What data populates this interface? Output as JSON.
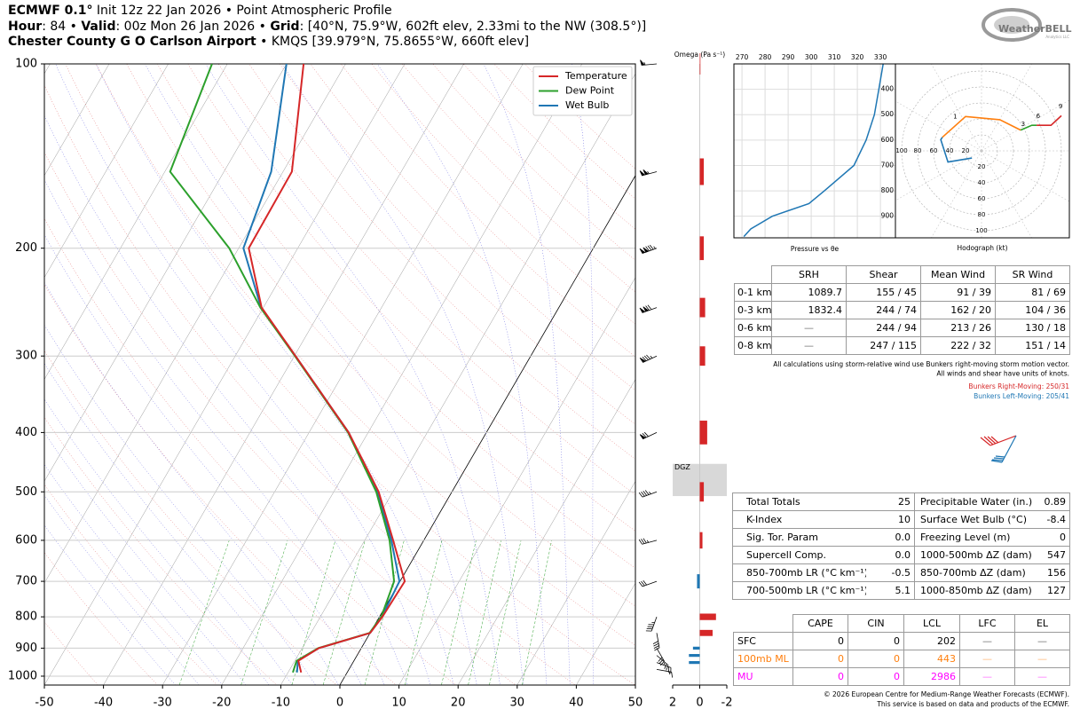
{
  "header": {
    "lines": [
      [
        "ECMWF 0.1°",
        " Init 12z 22 Jan 2026 • Point Atmospheric Profile"
      ],
      [
        "Hour",
        ": 84 • ",
        "Valid",
        ": 00z Mon 26 Jan 2026 • ",
        "Grid",
        ": [40°N, 75.9°W, 602ft elev, 2.33mi to the NW (308.5°)]"
      ],
      [
        "Chester County G O Carlson Airport",
        " • KMQS [39.979°N, 75.8655°W, 660ft elev]"
      ]
    ]
  },
  "logo": {
    "name": "WeatherBELL",
    "sub": "Analytics LLC"
  },
  "chart_data": [
    {
      "type": "skewt",
      "pressure": [
        986,
        944,
        900,
        850,
        800,
        700,
        600,
        500,
        400,
        300,
        250,
        200,
        150,
        100
      ],
      "series": [
        {
          "name": "Temperature",
          "color": "#d62728",
          "values": [
            -7.8,
            -9.4,
            -7.2,
            0.0,
            0.5,
            0.8,
            -5.2,
            -12.4,
            -23.3,
            -39.8,
            -50.3,
            -58.3,
            -58.5,
            -67.1
          ]
        },
        {
          "name": "Dew Point",
          "color": "#2ca02c",
          "values": [
            -9.2,
            -9.7,
            -7.3,
            -0.1,
            0.3,
            -1.0,
            -5.8,
            -12.8,
            -23.4,
            -39.9,
            -50.5,
            -61.6,
            -79.1,
            -82.6
          ]
        },
        {
          "name": "Wet Bulb",
          "color": "#1f77b4",
          "values": [
            -8.5,
            -9.5,
            -7.2,
            0.0,
            0.4,
            -0.1,
            -5.5,
            -12.6,
            -23.3,
            -39.8,
            -50.4,
            -59.2,
            -62.0,
            -70.0
          ]
        }
      ],
      "xlim": [
        -50,
        50
      ],
      "xticks": [
        -50,
        -40,
        -30,
        -20,
        -10,
        0,
        10,
        20,
        30,
        40,
        50
      ],
      "ylim": [
        1034,
        100
      ],
      "yticks": [
        100,
        200,
        300,
        400,
        500,
        600,
        700,
        800,
        900,
        1000
      ],
      "log_y": true,
      "grid": true,
      "legend": "upper right",
      "wind_barbs": {
        "pressure": [
          100,
          150,
          200,
          250,
          300,
          400,
          500,
          600,
          700,
          800,
          850,
          900,
          925,
          950,
          975
        ],
        "speed": [
          55,
          105,
          135,
          120,
          85,
          70,
          45,
          35,
          30,
          45,
          40,
          30,
          25,
          20,
          15
        ],
        "direction": [
          265,
          255,
          250,
          250,
          245,
          245,
          250,
          255,
          250,
          200,
          170,
          150,
          130,
          110,
          100
        ]
      }
    },
    {
      "type": "bar",
      "title": "Omega (Pa s⁻¹)",
      "pressure": [
        100,
        150,
        200,
        250,
        300,
        400,
        500,
        600,
        700,
        800,
        850,
        900,
        925,
        950
      ],
      "values": [
        -0.05,
        -0.3,
        -0.3,
        -0.4,
        -0.4,
        -0.55,
        -0.3,
        -0.2,
        0.2,
        -1.2,
        -0.95,
        0.5,
        0.8,
        0.8
      ],
      "negative_color": "#d62728",
      "positive_color": "#1f77b4",
      "xlim": [
        2,
        -2
      ],
      "xticks": [
        2,
        0,
        -2
      ],
      "ylim": [
        1034,
        100
      ],
      "log_y": true,
      "dgz": {
        "label": "DGZ",
        "pressure": [
          450,
          508
        ]
      }
    },
    {
      "type": "line",
      "title": "Pressure vs θe",
      "pressure": [
        300,
        400,
        500,
        600,
        700,
        800,
        850,
        900,
        950,
        980
      ],
      "values": [
        331.2,
        329.3,
        327.4,
        323.8,
        318.5,
        305.7,
        299.0,
        283.1,
        273.8,
        270.8
      ],
      "color": "#1f77b4",
      "xlim": [
        266.5,
        336.5
      ],
      "xticks": [
        270,
        280,
        290,
        300,
        310,
        320,
        330
      ],
      "ylim": [
        985,
        300
      ],
      "yticks": [
        400,
        500,
        600,
        700,
        800,
        900
      ],
      "grid": true
    },
    {
      "type": "hodograph",
      "title": "Hodograph (kt)",
      "rings": [
        20,
        40,
        60,
        80,
        100
      ],
      "segments": [
        {
          "color": "#1f77b4",
          "u": [
            -12,
            -42,
            -51,
            -49
          ],
          "v": [
            -9,
            -14,
            14,
            17
          ]
        },
        {
          "color": "#ff7f0e",
          "u": [
            -49,
            -20,
            23,
            49
          ],
          "v": [
            17,
            43,
            39,
            26
          ]
        },
        {
          "color": "#2ca02c",
          "u": [
            49,
            63,
            69
          ],
          "v": [
            26,
            32,
            32
          ]
        },
        {
          "color": "#d62728",
          "u": [
            69,
            87,
            100
          ],
          "v": [
            32,
            32,
            44
          ]
        }
      ],
      "height_labels": {
        "labels": [
          "1",
          "3",
          "6",
          "9"
        ],
        "u": [
          -33,
          52,
          71,
          99
        ],
        "v": [
          37,
          28,
          38,
          50
        ]
      }
    }
  ],
  "wind_table": {
    "header": [
      "SRH",
      "Shear",
      "Mean Wind",
      "SR Wind"
    ],
    "rows": [
      {
        "label": "0-1 km",
        "cells": [
          "1089.7",
          "155 / 45",
          "91 / 39",
          "81 / 69"
        ]
      },
      {
        "label": "0-3 km",
        "cells": [
          "1832.4",
          "244 / 74",
          "162 / 20",
          "104 / 36"
        ]
      },
      {
        "label": "0-6 km",
        "cells": [
          "—",
          "244 / 94",
          "213 / 26",
          "130 / 18"
        ]
      },
      {
        "label": "0-8 km",
        "cells": [
          "—",
          "247 / 115",
          "222 / 32",
          "151 / 14"
        ]
      }
    ]
  },
  "notes": [
    "All calculations using storm-relative wind use Bunkers right-moving storm motion vector.",
    "All winds and shear have units of knots."
  ],
  "storm_motion": [
    {
      "text": "Bunkers Right-Moving: 250/31",
      "color": "#d62728"
    },
    {
      "text": "Bunkers Left-Moving: 205/41",
      "color": "#1f77b4"
    }
  ],
  "index_table": {
    "rows": [
      [
        {
          "label": "Total Totals",
          "value": "25"
        },
        {
          "label": "Precipitable Water (in.)",
          "value": "0.89"
        }
      ],
      [
        {
          "label": "K-Index",
          "value": "10"
        },
        {
          "label": "Surface Wet Bulb (°C)",
          "value": "-8.4"
        }
      ],
      [
        {
          "label": "Sig. Tor. Param",
          "value": "0.0"
        },
        {
          "label": "Freezing Level (m)",
          "value": "0"
        }
      ],
      [
        {
          "label": "Supercell Comp.",
          "value": "0.0"
        },
        {
          "label": "1000-500mb ΔZ (dam)",
          "value": "547"
        }
      ],
      [
        {
          "label": "850-700mb LR (°C km⁻¹)",
          "value": "-0.5"
        },
        {
          "label": "850-700mb ΔZ (dam)",
          "value": "156"
        }
      ],
      [
        {
          "label": "700-500mb LR (°C km⁻¹)",
          "value": "5.1"
        },
        {
          "label": "1000-850mb ΔZ (dam)",
          "value": "127"
        }
      ]
    ]
  },
  "parcel_table": {
    "header": [
      "CAPE",
      "CIN",
      "LCL",
      "LFC",
      "EL"
    ],
    "rows": [
      {
        "label": "SFC",
        "color": "#000000",
        "cells": [
          "0",
          "0",
          "202",
          "—",
          "—"
        ]
      },
      {
        "label": "100mb ML",
        "color": "#ff7f0e",
        "cells": [
          "0",
          "0",
          "443",
          "—",
          "—"
        ]
      },
      {
        "label": "MU",
        "color": "#ff00ff",
        "cells": [
          "0",
          "0",
          "2986",
          "—",
          "—"
        ]
      }
    ]
  },
  "footer": [
    "© 2026 European Centre for Medium-Range Weather Forecasts (ECMWF).",
    "This service is based on data and products of the ECMWF."
  ]
}
